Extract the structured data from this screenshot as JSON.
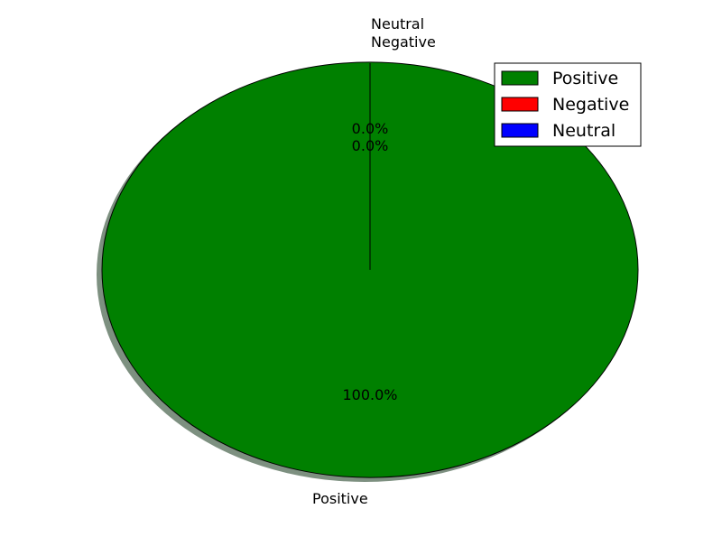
{
  "chart_data": {
    "type": "pie",
    "categories": [
      "Positive",
      "Negative",
      "Neutral"
    ],
    "values": [
      100.0,
      0.0,
      0.0
    ],
    "percent_labels": [
      "100.0%",
      "0.0%",
      "0.0%"
    ],
    "colors": [
      "#008000",
      "#ff0000",
      "#0000ff"
    ],
    "legend": {
      "placement": "top-right",
      "entries": [
        "Positive",
        "Negative",
        "Neutral"
      ]
    },
    "shadow": true,
    "shadow_color": "#6f8472",
    "start_angle_deg": 90
  }
}
